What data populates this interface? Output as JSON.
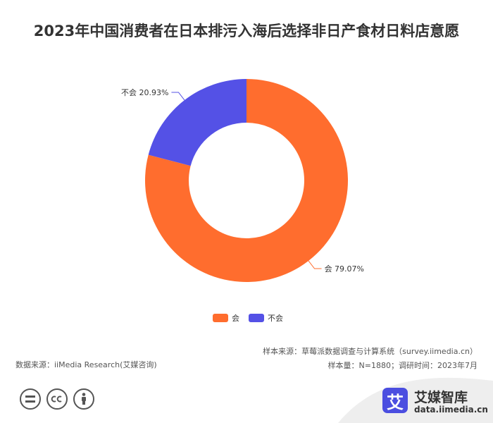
{
  "chart_data": {
    "type": "pie",
    "title": "2023年中国消费者在日本排污入海后选择非日产食材日料店意愿",
    "categories": [
      "会",
      "不会"
    ],
    "values": [
      79.07,
      20.93
    ],
    "slice_labels": [
      "会 79.07%",
      "不会 20.93%"
    ],
    "colors": [
      "#ff6d2e",
      "#5451e6"
    ],
    "legend": {
      "position": "bottom-center",
      "items": [
        {
          "label": "会",
          "color": "#ff6d2e"
        },
        {
          "label": "不会",
          "color": "#5451e6"
        }
      ]
    }
  },
  "footer": {
    "source": "数据来源：iiMedia Research(艾媒咨询)",
    "sample_source": "样本来源：草莓派数据调查与计算系统（survey.iimedia.cn）",
    "sample_info": "样本量：N=1880；调研时间：2023年7月"
  },
  "brand": {
    "logo_char": "艾",
    "name": "艾媒智库",
    "url": "data.iimedia.cn"
  },
  "license_icons": [
    "equal-icon",
    "cc-icon",
    "person-icon"
  ]
}
